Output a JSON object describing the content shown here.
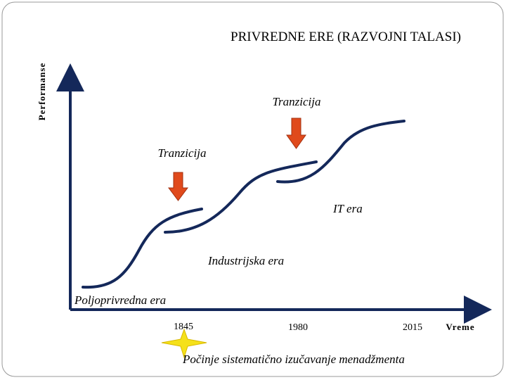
{
  "title": "PRIVREDNE ERE (RAZVOJNI TALASI)",
  "axes": {
    "y_label": "Performanse",
    "x_label": "Vreme"
  },
  "x_markers": [
    "1845",
    "1980",
    "2015"
  ],
  "transitions": [
    "Tranzicija",
    "Tranzicija"
  ],
  "eras": [
    "Poljoprivredna era",
    "Industrijska era",
    "IT era"
  ],
  "note": "Počinje sistematično izučavanje menadžmenta"
}
